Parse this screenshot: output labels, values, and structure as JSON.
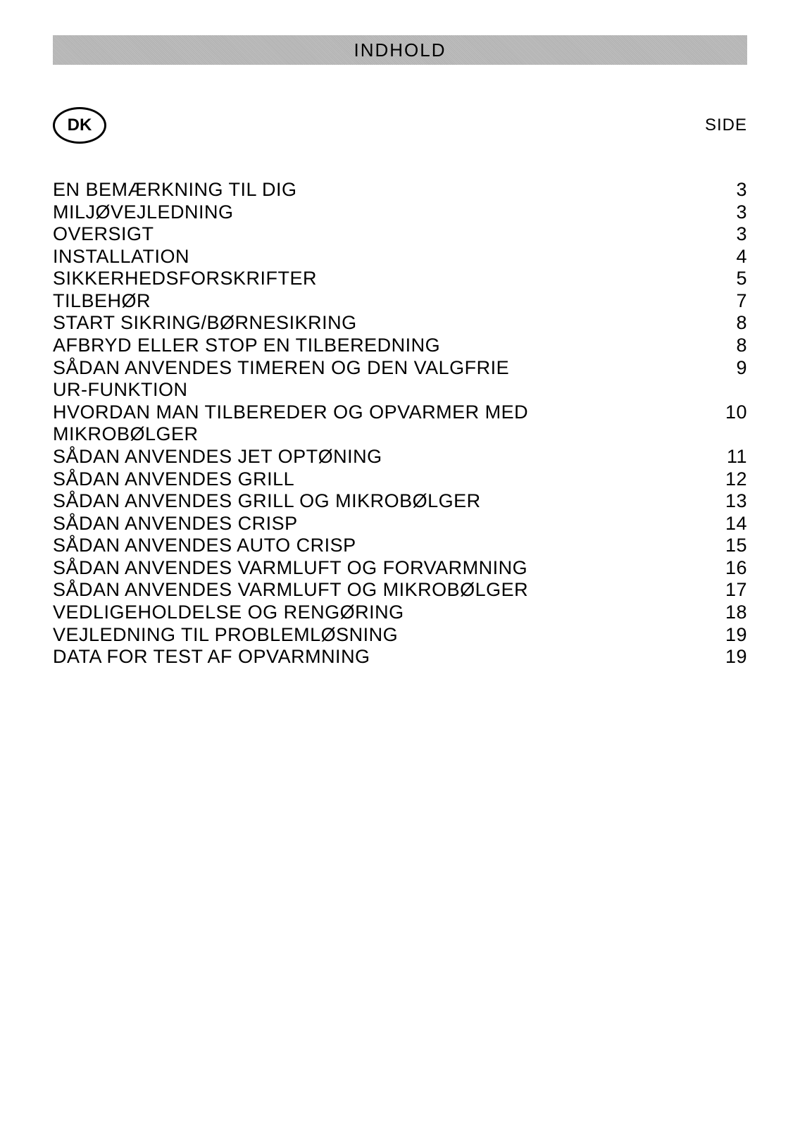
{
  "header": {
    "title": "INDHOLD"
  },
  "language_badge": "DK",
  "page_label": "SIDE",
  "toc": [
    {
      "title": "EN BEMÆRKNING TIL DIG",
      "page": "3"
    },
    {
      "title": "MILJØVEJLEDNING",
      "page": "3"
    },
    {
      "title": "OVERSIGT",
      "page": "3"
    },
    {
      "title": "INSTALLATION",
      "page": "4"
    },
    {
      "title": "SIKKERHEDSFORSKRIFTER",
      "page": "5"
    },
    {
      "title": "TILBEHØR",
      "page": "7"
    },
    {
      "title": "START SIKRING/BØRNESIKRING",
      "page": "8"
    },
    {
      "title": "AFBRYD ELLER STOP EN TILBEREDNING",
      "page": "8"
    },
    {
      "title": "SÅDAN ANVENDES TIMEREN  OG DEN VALGFRIE UR-FUNKTION",
      "page": "9"
    },
    {
      "title": "HVORDAN MAN TILBEREDER OG OPVARMER MED MIKROBØLGER",
      "page": "10"
    },
    {
      "title": "SÅDAN ANVENDES JET OPTØNING",
      "page": "11"
    },
    {
      "title": "SÅDAN ANVENDES GRILL",
      "page": "12"
    },
    {
      "title": "SÅDAN ANVENDES GRILL OG MIKROBØLGER",
      "page": "13"
    },
    {
      "title": "SÅDAN ANVENDES CRISP",
      "page": "14"
    },
    {
      "title": "SÅDAN ANVENDES AUTO CRISP",
      "page": "15"
    },
    {
      "title": "SÅDAN ANVENDES VARMLUFT OG FORVARMNING",
      "page": "16"
    },
    {
      "title": "SÅDAN ANVENDES VARMLUFT OG MIKROBØLGER",
      "page": "17"
    },
    {
      "title": "VEDLIGEHOLDELSE OG RENGØRING",
      "page": "18"
    },
    {
      "title": "VEJLEDNING TIL PROBLEMLØSNING",
      "page": "19"
    },
    {
      "title": "DATA FOR TEST AF OPVARMNING",
      "page": "19"
    }
  ],
  "colors": {
    "background": "#ffffff",
    "header_bg": "#b8b8b8",
    "text": "#000000"
  }
}
